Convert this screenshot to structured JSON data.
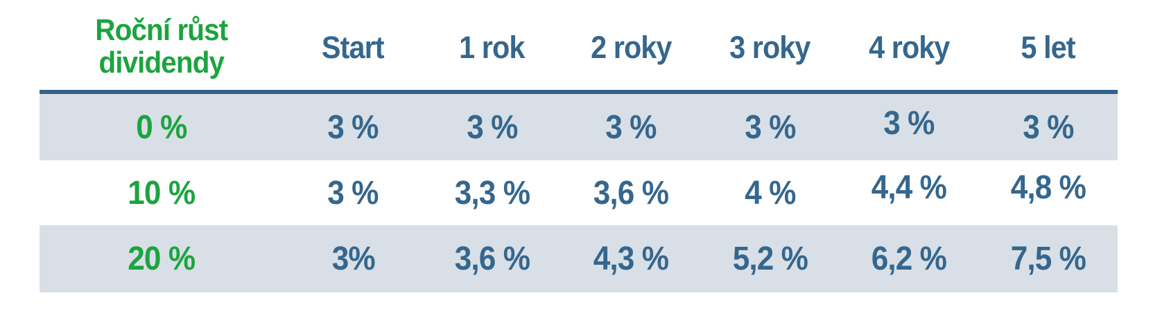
{
  "table": {
    "header": {
      "label_line1": "Roční růst",
      "label_line2": "dividendy",
      "columns": [
        "Start",
        "1 rok",
        "2 roky",
        "3 roky",
        "4 roky",
        "5 let"
      ]
    },
    "rows": [
      {
        "label": "0 %",
        "values": [
          "3 %",
          "3 %",
          "3 %",
          "3 %",
          "3 %",
          "3 %"
        ]
      },
      {
        "label": "10 %",
        "values": [
          "3 %",
          "3,3 %",
          "3,6 %",
          "4 %",
          "4,4 %",
          "4,8 %"
        ]
      },
      {
        "label": "20 %",
        "values": [
          "3%",
          "3,6 %",
          "4,3 %",
          "5,2 %",
          "6,2 %",
          "7,5 %"
        ]
      }
    ],
    "colors": {
      "row_label_green": "#1ca43f",
      "value_blue": "#35678e",
      "divider_blue": "#35618a",
      "stripe_gray": "#d9dfe6",
      "background": "#ffffff"
    }
  },
  "chart_data": {
    "type": "table",
    "title": "Roční růst dividendy",
    "columns": [
      "Start",
      "1 rok",
      "2 roky",
      "3 roky",
      "4 roky",
      "5 let"
    ],
    "rows": [
      {
        "annual_dividend_growth_pct": 0,
        "dividend_yield_pct": [
          3,
          3,
          3,
          3,
          3,
          3
        ]
      },
      {
        "annual_dividend_growth_pct": 10,
        "dividend_yield_pct": [
          3,
          3.3,
          3.6,
          4,
          4.4,
          4.8
        ]
      },
      {
        "annual_dividend_growth_pct": 20,
        "dividend_yield_pct": [
          3,
          3.6,
          4.3,
          5.2,
          6.2,
          7.5
        ]
      }
    ],
    "layout": {
      "striped_rows": [
        1,
        3
      ],
      "header_divider": true,
      "decimal_separator": "comma"
    }
  }
}
